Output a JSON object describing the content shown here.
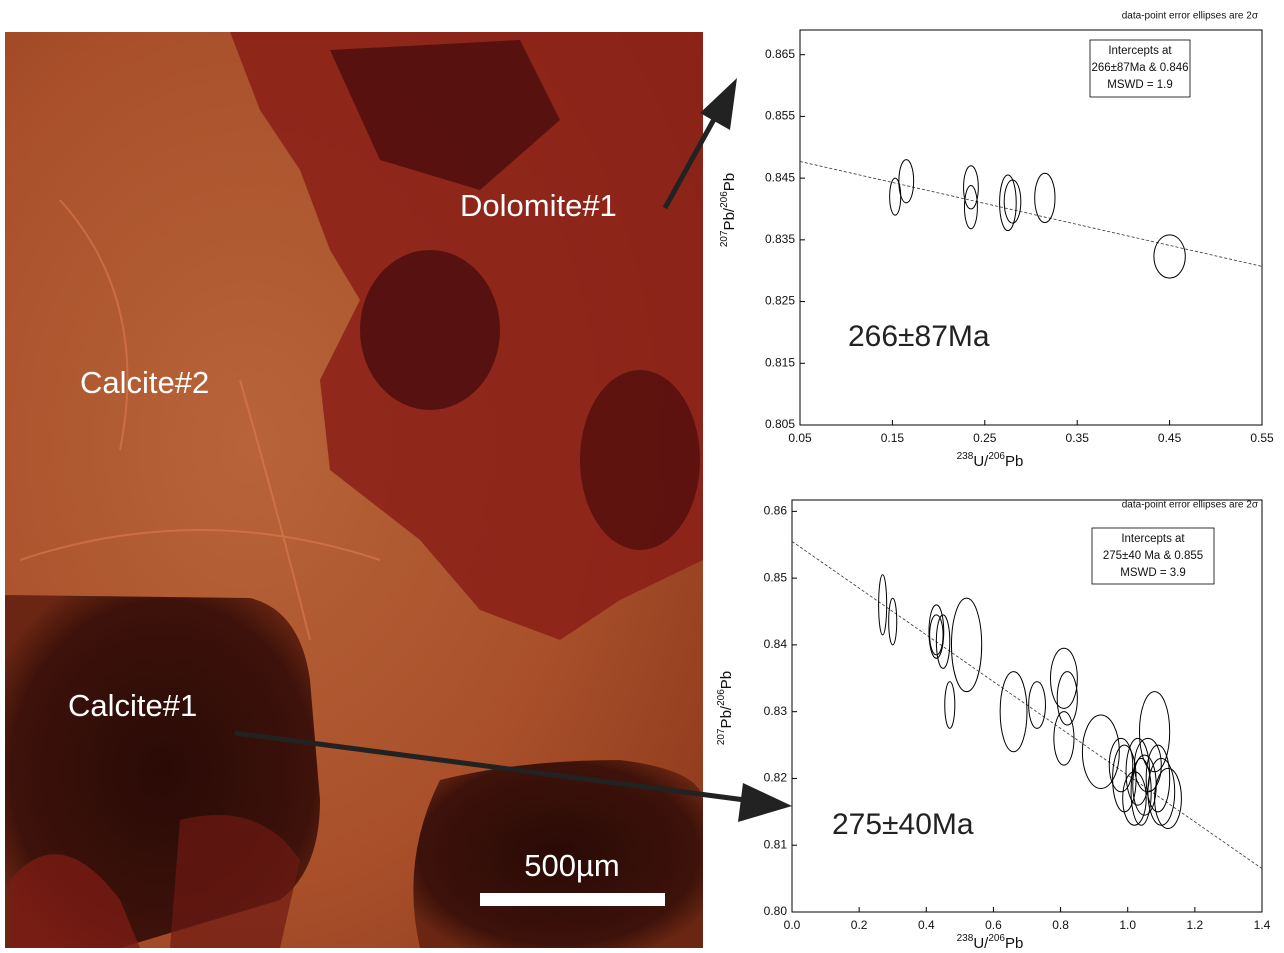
{
  "image": {
    "labels": [
      "Dolomite#1",
      "Calcite#2",
      "Calcite#1"
    ],
    "scale_bar": "500µm"
  },
  "chart_data": [
    {
      "type": "scatter",
      "note": "data-point error ellipses are 2σ",
      "intercept_box": [
        "Intercepts at",
        "266±87Ma & 0.846",
        "MSWD = 1.9"
      ],
      "age_label": "266±87Ma",
      "xlabel": [
        "238",
        "U/",
        "206",
        "Pb"
      ],
      "ylabel": [
        "207",
        "Pb/",
        "206",
        "Pb"
      ],
      "color": "#000000",
      "xlim": [
        0.05,
        0.55
      ],
      "ylim": [
        0.805,
        0.869
      ],
      "xticks": [
        0.05,
        0.15,
        0.25,
        0.35,
        0.45,
        0.55
      ],
      "yticks": [
        0.805,
        0.815,
        0.825,
        0.835,
        0.845,
        0.855,
        0.865
      ],
      "x": [
        0.153,
        0.165,
        0.235,
        0.235,
        0.275,
        0.28,
        0.315,
        0.45
      ],
      "y": [
        0.842,
        0.8445,
        0.8435,
        0.8403,
        0.841,
        0.8412,
        0.8418,
        0.8323
      ],
      "x_err": [
        0.006,
        0.008,
        0.008,
        0.007,
        0.009,
        0.009,
        0.011,
        0.017
      ],
      "y_err": [
        0.003,
        0.0035,
        0.0035,
        0.0035,
        0.0045,
        0.0035,
        0.004,
        0.0035
      ],
      "fit": {
        "x": [
          0.05,
          0.55
        ],
        "y": [
          0.8477,
          0.8307
        ]
      }
    },
    {
      "type": "scatter",
      "note": "data-point error ellipses are 2σ",
      "intercept_box": [
        "Intercepts at",
        "275±40 Ma & 0.855",
        "MSWD = 3.9"
      ],
      "age_label": "275±40Ma",
      "xlabel": [
        "238",
        "U/",
        "206",
        "Pb"
      ],
      "ylabel": [
        "207",
        "Pb/",
        "206",
        "Pb"
      ],
      "color": "#000000",
      "xlim": [
        0,
        1.4
      ],
      "ylim": [
        0.8,
        0.8617
      ],
      "xticks": [
        {
          "value": 0,
          "label": "0.0"
        },
        0.2,
        0.4,
        0.6,
        0.8,
        {
          "value": 1,
          "label": "1.0"
        },
        1.2,
        1.4
      ],
      "yticks": [
        {
          "value": 0.8,
          "label": "0.80"
        },
        0.81,
        0.82,
        0.83,
        0.84,
        0.85,
        0.86
      ],
      "x": [
        0.27,
        0.3,
        0.43,
        0.43,
        0.45,
        0.52,
        0.47,
        0.66,
        0.73,
        0.81,
        0.82,
        0.81,
        0.92,
        0.98,
        0.99,
        1.02,
        1.03,
        1.05,
        1.06,
        1.08,
        1.09,
        1.1,
        1.12,
        1.04
      ],
      "y": [
        0.846,
        0.8435,
        0.842,
        0.8415,
        0.8405,
        0.84,
        0.831,
        0.83,
        0.831,
        0.835,
        0.832,
        0.826,
        0.824,
        0.822,
        0.82,
        0.817,
        0.821,
        0.819,
        0.822,
        0.827,
        0.82,
        0.818,
        0.817,
        0.818
      ],
      "x_err": [
        0.012,
        0.012,
        0.022,
        0.02,
        0.02,
        0.045,
        0.015,
        0.04,
        0.025,
        0.04,
        0.03,
        0.03,
        0.055,
        0.035,
        0.035,
        0.035,
        0.035,
        0.035,
        0.04,
        0.045,
        0.035,
        0.04,
        0.04,
        0.03
      ],
      "y_err": [
        0.0045,
        0.0035,
        0.004,
        0.003,
        0.004,
        0.007,
        0.0035,
        0.006,
        0.0035,
        0.0045,
        0.004,
        0.004,
        0.0055,
        0.004,
        0.005,
        0.004,
        0.005,
        0.0045,
        0.004,
        0.006,
        0.005,
        0.005,
        0.0045,
        0.005
      ],
      "fit": {
        "x": [
          0,
          1.4
        ],
        "y": [
          0.8555,
          0.8065
        ]
      }
    }
  ]
}
